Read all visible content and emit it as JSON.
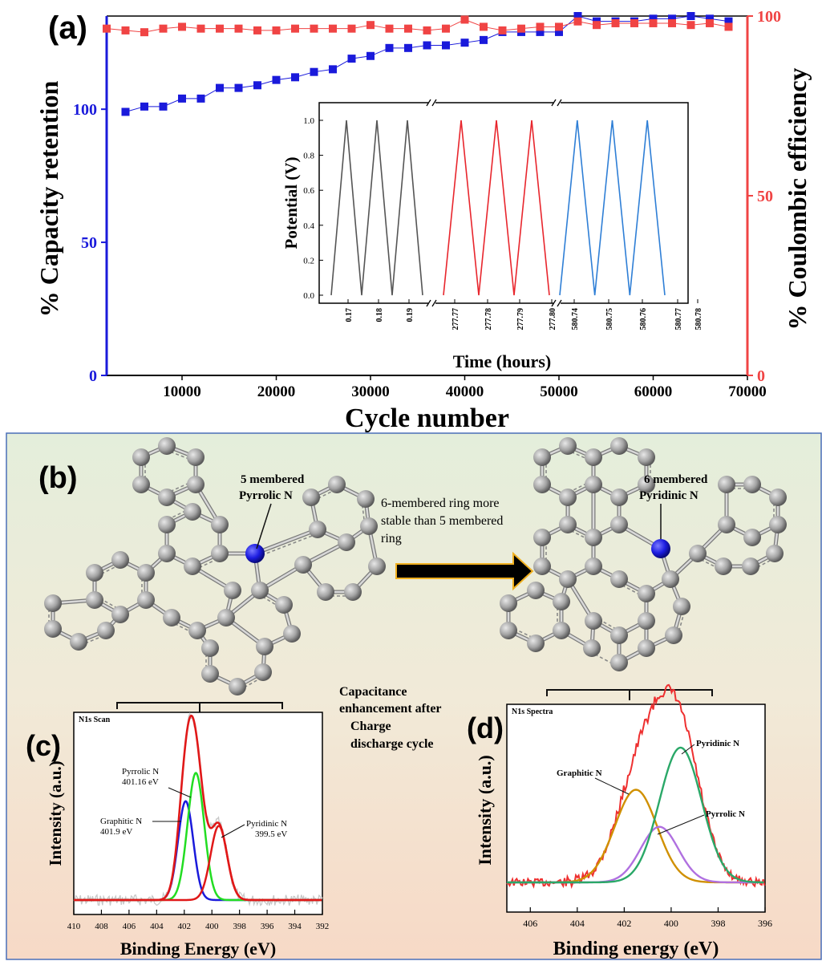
{
  "colors": {
    "blue": "#1a1adb",
    "red": "#f04444",
    "gray_line": "#555555",
    "inset_red": "#e8262d",
    "inset_blue": "#2f7fd6",
    "atom_gray": "#9e9e9e",
    "atom_blue": "#1c1ce0"
  },
  "panel_a": {
    "letter": "(a)"
  },
  "panel_b": {
    "letter": "(b)",
    "left_label_1": "5 membered",
    "left_label_2": "Pyrrolic N",
    "middle_text_1": "6-membered ring more",
    "middle_text_2": "stable than 5 membered",
    "middle_text_3": "ring",
    "right_label_1": "6 membered",
    "right_label_2": "Pyridinic N",
    "caption_1": "Capacitance",
    "caption_2": "enhancement after",
    "caption_3": "Charge",
    "caption_4": "discharge cycle"
  },
  "panel_c": {
    "letter": "(c)"
  },
  "panel_d": {
    "letter": "(d)"
  },
  "chart_data": [
    {
      "id": "a-main",
      "type": "scatter",
      "xlabel": "Cycle number",
      "ylabel_left": "% Capacity retention",
      "ylabel_right": "% Coulombic efficiency",
      "xlim": [
        2000,
        70000
      ],
      "ylim_left": [
        0,
        135
      ],
      "ylim_right": [
        0,
        100
      ],
      "xticks": [
        10000,
        20000,
        30000,
        40000,
        50000,
        60000,
        70000
      ],
      "yticks_left": [
        0,
        50,
        100
      ],
      "yticks_right": [
        0,
        50,
        100
      ],
      "series": [
        {
          "axis": "left",
          "color": "#1a1adb",
          "x": [
            4000,
            6000,
            8000,
            10000,
            12000,
            14000,
            16000,
            18000,
            20000,
            22000,
            24000,
            26000,
            28000,
            30000,
            32000,
            34000,
            36000,
            38000,
            40000,
            42000,
            44000,
            46000,
            48000,
            50000,
            52000,
            54000,
            56000,
            58000,
            60000,
            62000,
            64000,
            66000,
            68000
          ],
          "values": [
            99,
            101,
            101,
            104,
            104,
            108,
            108,
            109,
            111,
            112,
            114,
            115,
            119,
            120,
            123,
            123,
            124,
            124,
            125,
            126,
            129,
            129,
            129,
            129,
            135,
            133,
            133,
            133,
            134,
            134,
            135,
            134,
            133
          ]
        },
        {
          "axis": "right",
          "color": "#f04444",
          "x": [
            2000,
            4000,
            6000,
            8000,
            10000,
            12000,
            14000,
            16000,
            18000,
            20000,
            22000,
            24000,
            26000,
            28000,
            30000,
            32000,
            34000,
            36000,
            38000,
            40000,
            42000,
            44000,
            46000,
            48000,
            50000,
            52000,
            54000,
            56000,
            58000,
            60000,
            62000,
            64000,
            66000,
            68000
          ],
          "values": [
            96.5,
            96,
            95.5,
            96.5,
            97,
            96.5,
            96.5,
            96.5,
            96,
            96,
            96.5,
            96.5,
            96.5,
            96.5,
            97.5,
            96.5,
            96.5,
            96,
            96.5,
            99,
            97,
            96,
            96.5,
            97,
            97,
            98.5,
            97.5,
            98,
            98,
            98,
            98,
            97.5,
            98,
            97
          ]
        }
      ]
    },
    {
      "id": "a-inset",
      "type": "line",
      "xlabel": "Time (hours)",
      "ylabel": "Potential (V)",
      "ylim": [
        0,
        1.0
      ],
      "yticks": [
        "0.0",
        "0.2",
        "0.4",
        "0.6",
        "0.8",
        "1.0"
      ],
      "segments": [
        {
          "color": "#555555",
          "ticks": [
            "0.17",
            "0.18",
            "0.19"
          ],
          "values": [
            0,
            1,
            0,
            1,
            0,
            1,
            0
          ]
        },
        {
          "color": "#e8262d",
          "ticks": [
            "277.77",
            "277.78",
            "277.79",
            "277.80"
          ],
          "values": [
            0,
            1,
            0,
            1,
            0,
            1,
            0
          ]
        },
        {
          "color": "#2f7fd6",
          "ticks": [
            "580.74",
            "580.75",
            "580.76",
            "580.77",
            "580.78"
          ],
          "values": [
            0,
            1,
            0,
            1,
            0,
            1,
            0
          ]
        }
      ]
    },
    {
      "id": "c",
      "type": "line",
      "title": "N1s Scan",
      "xlabel": "Binding Energy (eV)",
      "ylabel": "Intensity (a.u.)",
      "xlim": [
        410,
        392
      ],
      "xticks": [
        410,
        408,
        406,
        404,
        402,
        400,
        398,
        396,
        394,
        392
      ],
      "series": [
        {
          "name": "Graphitic N",
          "color": "#1a1adb",
          "center": 401.9,
          "height": 0.56,
          "width": 0.55
        },
        {
          "name": "Pyrrolic N",
          "color": "#22dd22",
          "center": 401.16,
          "height": 0.72,
          "width": 0.6
        },
        {
          "name": "Pyridinic N",
          "color": "#e01818",
          "center": 399.5,
          "height": 0.42,
          "width": 0.6
        }
      ],
      "annotations": [
        "Pyrrolic N",
        "401.16 eV",
        "Graphitic N",
        "401.9 eV",
        "Pyridinic N",
        "399.5 eV"
      ]
    },
    {
      "id": "d",
      "type": "line",
      "title": "N1s Spectra",
      "xlabel": "Binding energy (eV)",
      "ylabel": "Intensity (a.u.)",
      "xlim": [
        407,
        396
      ],
      "xticks": [
        406,
        404,
        402,
        400,
        398,
        396
      ],
      "series": [
        {
          "name": "Graphitic N",
          "color": "#d09000",
          "center": 401.5,
          "height": 0.55,
          "width": 0.9
        },
        {
          "name": "Pyrrolic N",
          "color": "#b070e0",
          "center": 400.5,
          "height": 0.33,
          "width": 0.8
        },
        {
          "name": "Pyridinic N",
          "color": "#2aa868",
          "center": 399.6,
          "height": 0.8,
          "width": 0.9
        }
      ],
      "annotations": [
        "Graphitic N",
        "Pyrrolic N",
        "Pyridinic N"
      ]
    }
  ]
}
